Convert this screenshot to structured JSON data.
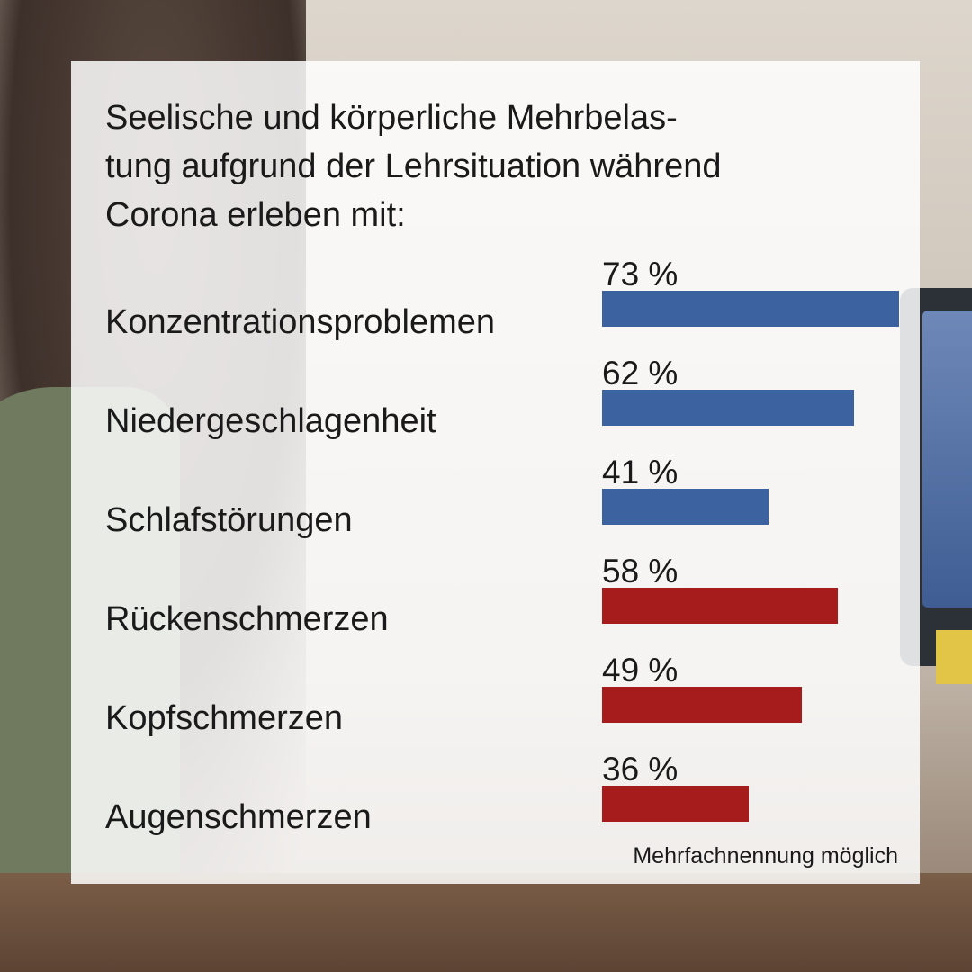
{
  "colors": {
    "blue": "#3c63a0",
    "red": "#a61c1c"
  },
  "chart_data": {
    "type": "bar",
    "orientation": "horizontal",
    "title_lines": [
      "Seelische und körperliche Mehrbelas-",
      "tung aufgrund der Lehrsituation während",
      "Corona erleben mit:"
    ],
    "categories": [
      "Konzentrationsproblemen",
      "Niedergeschlagenheit",
      "Schlafstörungen",
      "Rückenschmerzen",
      "Kopfschmerzen",
      "Augenschmerzen"
    ],
    "values": [
      73,
      62,
      41,
      58,
      49,
      36
    ],
    "value_labels": [
      "73 %",
      "62 %",
      "41 %",
      "58 %",
      "49 %",
      "36 %"
    ],
    "bar_colors": [
      "blue",
      "blue",
      "blue",
      "red",
      "red",
      "red"
    ],
    "xlim": [
      0,
      73
    ],
    "note": "Mehrfachnennung möglich"
  }
}
